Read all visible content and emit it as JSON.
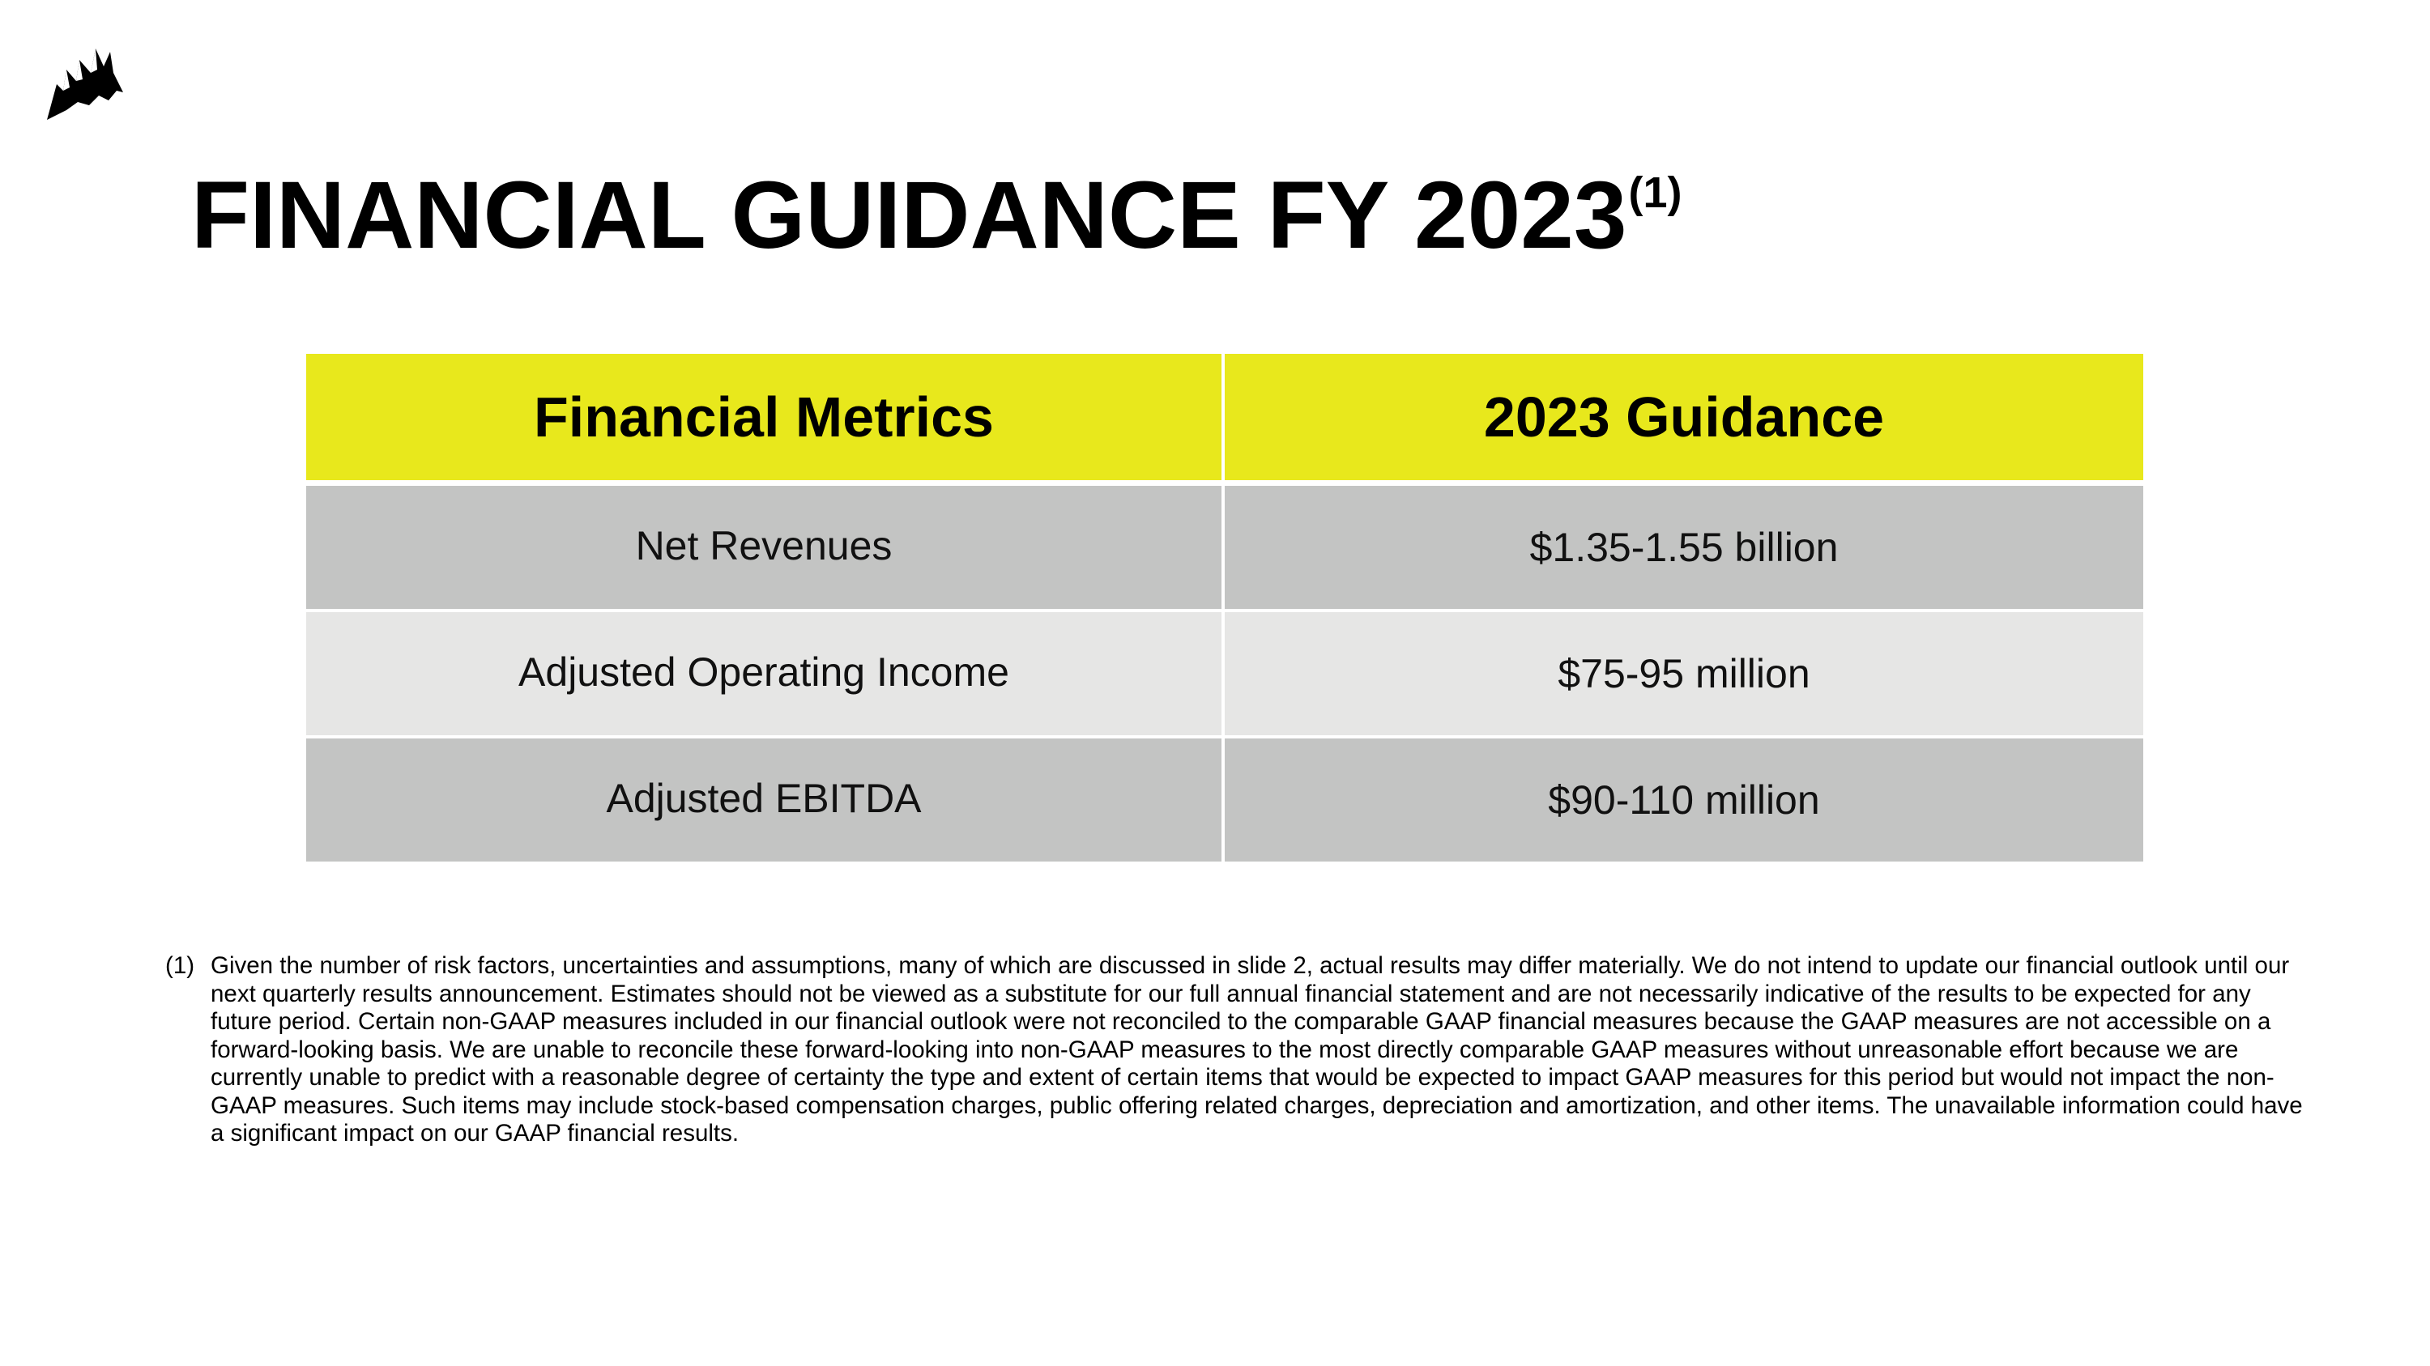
{
  "title": {
    "main": "FINANCIAL GUIDANCE FY 2023",
    "superscript": "(1)"
  },
  "table": {
    "headers": [
      "Financial Metrics",
      "2023 Guidance"
    ],
    "rows": [
      [
        "Net Revenues",
        "$1.35-1.55 billion"
      ],
      [
        "Adjusted Operating Income",
        "$75-95 million"
      ],
      [
        "Adjusted EBITDA",
        "$90-110 million"
      ]
    ]
  },
  "footnote": {
    "marker": "(1)",
    "text": "Given the number of risk factors, uncertainties and assumptions, many of which are discussed in slide 2, actual results may differ materially. We do not intend to update our financial outlook until our next quarterly results announcement. Estimates should not be viewed as a substitute for our full annual financial statement and are not necessarily indicative of the results to be expected for any future period. Certain non-GAAP measures included in our financial outlook were not reconciled to the comparable GAAP financial measures because the GAAP measures are not accessible on a forward-looking basis. We are unable to reconcile these forward-looking into non-GAAP measures to the most directly comparable GAAP measures without unreasonable effort because we are currently unable to predict with a reasonable degree of certainty the type and extent of certain items that would be expected to impact GAAP measures for this period but would not impact the non-GAAP measures. Such items may include stock-based compensation charges, public offering related charges, depreciation and amortization, and other items. The unavailable information could have a significant impact on our GAAP financial results."
  },
  "colors": {
    "header_bg": "#e8e81c",
    "row_dark": "#c3c4c3",
    "row_light": "#e6e6e5"
  },
  "icons": {
    "logo": "corsair-sails-logo-icon"
  }
}
